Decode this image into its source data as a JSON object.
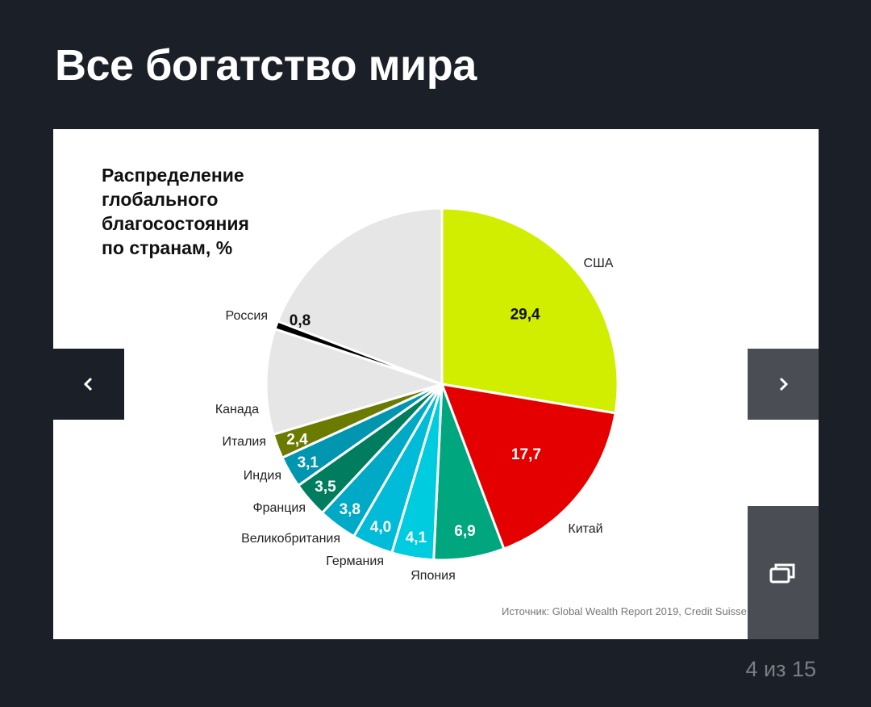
{
  "page": {
    "title": "Все богатство мира",
    "counter": "4 из 15"
  },
  "slide": {
    "source": "Источник: Global Wealth Report 2019, Credit Suisse"
  },
  "icons": {
    "prev": "chevron-left-icon",
    "next": "chevron-right-icon",
    "fullscreen": "gallery-expand-icon"
  },
  "chart_data": {
    "type": "pie",
    "title_lines": [
      "Распределение",
      "глобального",
      "благосостояния",
      "по странам, %"
    ],
    "slices": [
      {
        "label": "США",
        "value_label": "29,4",
        "value": 29.4,
        "color": "#d2ee00",
        "text_color": "#111111"
      },
      {
        "label": "Китай",
        "value_label": "17,7",
        "value": 17.7,
        "color": "#e50000",
        "text_color": "#ffffff"
      },
      {
        "label": "Япония",
        "value_label": "6,9",
        "value": 6.9,
        "color": "#00a67e",
        "text_color": "#ffffff"
      },
      {
        "label": "Германия",
        "value_label": "4,1",
        "value": 4.1,
        "color": "#00ccdf",
        "text_color": "#ffffff"
      },
      {
        "label": "Великобритания",
        "value_label": "4,0",
        "value": 4.0,
        "color": "#00bcd8",
        "text_color": "#ffffff"
      },
      {
        "label": "Франция",
        "value_label": "3,8",
        "value": 3.8,
        "color": "#00a9c6",
        "text_color": "#ffffff"
      },
      {
        "label": "Индия",
        "value_label": "3,5",
        "value": 3.5,
        "color": "#007d5f",
        "text_color": "#ffffff"
      },
      {
        "label": "Италия",
        "value_label": "3,1",
        "value": 3.1,
        "color": "#0096b0",
        "text_color": "#ffffff"
      },
      {
        "label": "Канада",
        "value_label": "2,4",
        "value": 2.4,
        "color": "#6b7a00",
        "text_color": "#ffffff"
      },
      {
        "label": "",
        "value_label": "",
        "value": 10.3,
        "color": "#e6e6e6",
        "text_color": "#111111"
      },
      {
        "label": "Россия",
        "value_label": "0,8",
        "value": 0.8,
        "color": "#000000",
        "text_color": "#111111"
      },
      {
        "label": "",
        "value_label": "",
        "value": 20.4,
        "color": "#e6e6e6",
        "text_color": "#111111"
      }
    ]
  }
}
